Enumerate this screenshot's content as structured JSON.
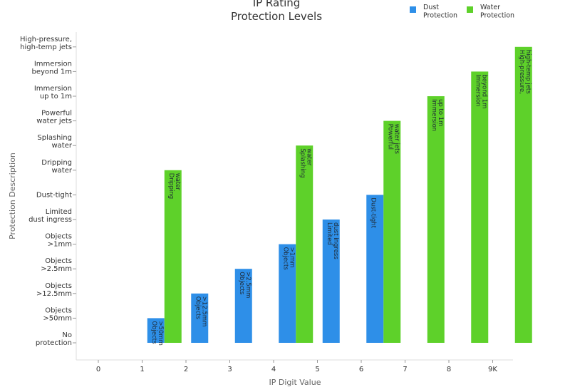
{
  "chart_data": {
    "type": "bar",
    "title": [
      "IP Rating",
      "Protection Levels"
    ],
    "xlabel": "IP Digit Value",
    "ylabel": "Protection Description",
    "categories": [
      "0",
      "1",
      "2",
      "3",
      "4",
      "5",
      "6",
      "7",
      "8",
      "9K"
    ],
    "y_levels": [
      [
        "No",
        "protection"
      ],
      [
        "Objects",
        ">50mm"
      ],
      [
        "Objects",
        ">12.5mm"
      ],
      [
        "Objects",
        ">2.5mm"
      ],
      [
        "Objects",
        ">1mm"
      ],
      [
        "Limited",
        "dust ingress"
      ],
      [
        "Dust-tight"
      ],
      [
        "Dripping",
        "water"
      ],
      [
        "Splashing",
        "water"
      ],
      [
        "Powerful",
        "water jets"
      ],
      [
        "Immersion",
        "up to 1m"
      ],
      [
        "Immersion",
        "beyond 1m"
      ],
      [
        "High-pressure,",
        "high-temp jets"
      ]
    ],
    "ylim": [
      0,
      12
    ],
    "legend_position": "top-right",
    "series": [
      {
        "name": [
          "Dust",
          "Protection"
        ],
        "color": "#2e8fe8",
        "values": [
          0,
          1,
          2,
          3,
          4,
          5,
          6,
          null,
          null,
          null
        ],
        "labels": [
          null,
          [
            "Objects",
            ">50mm"
          ],
          [
            "Objects",
            ">12.5mm"
          ],
          [
            "Objects",
            ">2.5mm"
          ],
          [
            "Objects",
            ">1mm"
          ],
          [
            "Limited",
            "dust ingress"
          ],
          [
            "Dust-tight"
          ],
          null,
          null,
          null
        ]
      },
      {
        "name": [
          "Water",
          "Protection"
        ],
        "color": "#5ed12a",
        "values": [
          null,
          7,
          null,
          null,
          8,
          null,
          9,
          10,
          11,
          12
        ],
        "labels": [
          null,
          [
            "Dripping",
            "water"
          ],
          null,
          null,
          [
            "Splashing",
            "water"
          ],
          null,
          [
            "Powerful",
            "water jets"
          ],
          [
            "Immersion",
            "up to 1m"
          ],
          [
            "Immersion",
            "beyond 1m"
          ],
          [
            "High-pressure,",
            "high-temp jets"
          ]
        ]
      }
    ]
  }
}
